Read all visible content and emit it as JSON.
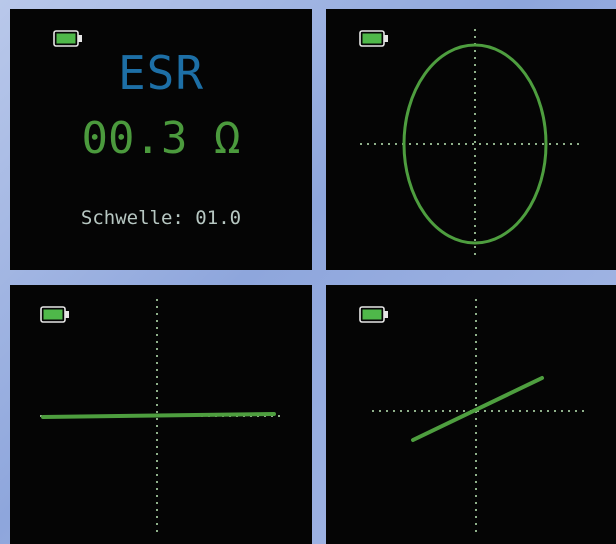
{
  "panels": {
    "esr_readout": {
      "title": "ESR",
      "value": "00.3 Ω",
      "threshold_label": "Schwelle: 01.0"
    },
    "trace_ellipse": {
      "trace_shape": "ellipse"
    },
    "trace_horizontal": {
      "trace_shape": "horizontal-line"
    },
    "trace_diagonal": {
      "trace_shape": "diagonal-line"
    }
  },
  "battery_icon": "battery-full-icon",
  "colors": {
    "esr_title": "#1d6fa6",
    "esr_value": "#4b9a3d",
    "threshold_text": "#b7c7c2",
    "trace": "#4e9e3f",
    "crosshair": "#8fb08a",
    "battery": "#4fb84a",
    "screen_bg": "#050505"
  }
}
